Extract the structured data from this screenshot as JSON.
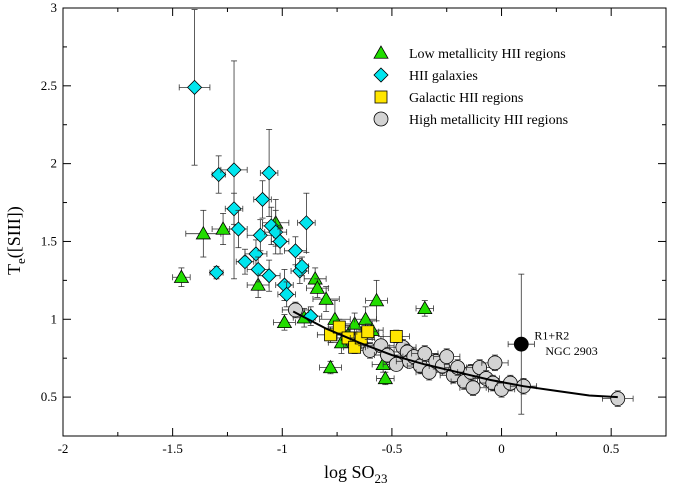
{
  "chart_data": {
    "type": "scatter",
    "xlabel": "log SO",
    "xlabel_sub": "23",
    "ylabel": "T",
    "ylabel_sub": "e",
    "ylabel_suffix": "([SIII])",
    "xlim": [
      -2,
      0.75
    ],
    "ylim": [
      0.25,
      3
    ],
    "x_ticks": [
      -2,
      -1.5,
      -1,
      -0.5,
      0,
      0.5
    ],
    "x_tick_labels": [
      "-2",
      "-1.5",
      "-1",
      "-0.5",
      "0",
      "0.5"
    ],
    "y_ticks": [
      0.5,
      1,
      1.5,
      2,
      2.5,
      3
    ],
    "y_tick_labels": [
      "0.5",
      "1",
      "1.5",
      "2",
      "2.5",
      "3"
    ],
    "grid": false,
    "legend_position": "top-right",
    "series": [
      {
        "name": "Low metallicity HII regions",
        "marker": "triangle",
        "color": "#22dd00",
        "points": [
          {
            "x": -1.46,
            "y": 1.27,
            "xerr": 0.04,
            "yerr": 0.06
          },
          {
            "x": -1.36,
            "y": 1.55,
            "xerr": 0.08,
            "yerr": 0.15
          },
          {
            "x": -1.27,
            "y": 1.58,
            "xerr": 0.05,
            "yerr": 0.1
          },
          {
            "x": -1.11,
            "y": 1.22,
            "xerr": 0.05,
            "yerr": 0.08
          },
          {
            "x": -1.03,
            "y": 1.62,
            "xerr": 0.06,
            "yerr": 0.15
          },
          {
            "x": -0.99,
            "y": 0.98,
            "xerr": 0.05,
            "yerr": 0.05
          },
          {
            "x": -0.9,
            "y": 1.01,
            "xerr": 0.05,
            "yerr": 0.06
          },
          {
            "x": -0.85,
            "y": 1.26,
            "xerr": 0.05,
            "yerr": 0.07
          },
          {
            "x": -0.84,
            "y": 1.2,
            "xerr": 0.05,
            "yerr": 0.06
          },
          {
            "x": -0.8,
            "y": 1.13,
            "xerr": 0.06,
            "yerr": 0.08
          },
          {
            "x": -0.78,
            "y": 0.69,
            "xerr": 0.05,
            "yerr": 0.04
          },
          {
            "x": -0.76,
            "y": 1.0,
            "xerr": 0.07,
            "yerr": 0.12
          },
          {
            "x": -0.73,
            "y": 0.85,
            "xerr": 0.06,
            "yerr": 0.07
          },
          {
            "x": -0.7,
            "y": 0.9,
            "xerr": 0.05,
            "yerr": 0.06
          },
          {
            "x": -0.67,
            "y": 0.97,
            "xerr": 0.05,
            "yerr": 0.07
          },
          {
            "x": -0.64,
            "y": 0.88,
            "xerr": 0.06,
            "yerr": 0.07
          },
          {
            "x": -0.62,
            "y": 1.0,
            "xerr": 0.05,
            "yerr": 0.08
          },
          {
            "x": -0.59,
            "y": 0.93,
            "xerr": 0.05,
            "yerr": 0.06
          },
          {
            "x": -0.57,
            "y": 1.12,
            "xerr": 0.05,
            "yerr": 0.13
          },
          {
            "x": -0.54,
            "y": 0.71,
            "xerr": 0.05,
            "yerr": 0.05
          },
          {
            "x": -0.53,
            "y": 0.62,
            "xerr": 0.04,
            "yerr": 0.04
          },
          {
            "x": -0.35,
            "y": 1.07,
            "xerr": 0.04,
            "yerr": 0.05
          }
        ]
      },
      {
        "name": "HII galaxies",
        "marker": "diamond",
        "color": "#00e5ee",
        "points": [
          {
            "x": -1.4,
            "y": 2.49,
            "xerr": 0.07,
            "yerr": 0.5
          },
          {
            "x": -1.3,
            "y": 1.3,
            "xerr": 0.03,
            "yerr": 0.04
          },
          {
            "x": -1.29,
            "y": 1.93,
            "xerr": 0.03,
            "yerr": 0.12
          },
          {
            "x": -1.22,
            "y": 1.96,
            "xerr": 0.06,
            "yerr": 0.7
          },
          {
            "x": -1.22,
            "y": 1.71,
            "xerr": 0.04,
            "yerr": 0.1
          },
          {
            "x": -1.2,
            "y": 1.58,
            "xerr": 0.04,
            "yerr": 0.12
          },
          {
            "x": -1.17,
            "y": 1.37,
            "xerr": 0.04,
            "yerr": 0.08
          },
          {
            "x": -1.12,
            "y": 1.42,
            "xerr": 0.05,
            "yerr": 0.09
          },
          {
            "x": -1.11,
            "y": 1.32,
            "xerr": 0.05,
            "yerr": 0.08
          },
          {
            "x": -1.1,
            "y": 1.54,
            "xerr": 0.06,
            "yerr": 0.1
          },
          {
            "x": -1.09,
            "y": 1.77,
            "xerr": 0.04,
            "yerr": 0.12
          },
          {
            "x": -1.06,
            "y": 1.94,
            "xerr": 0.04,
            "yerr": 0.28
          },
          {
            "x": -1.06,
            "y": 1.28,
            "xerr": 0.05,
            "yerr": 0.1
          },
          {
            "x": -1.05,
            "y": 1.6,
            "xerr": 0.04,
            "yerr": 0.12
          },
          {
            "x": -1.03,
            "y": 1.56,
            "xerr": 0.05,
            "yerr": 0.14
          },
          {
            "x": -1.01,
            "y": 1.5,
            "xerr": 0.04,
            "yerr": 0.08
          },
          {
            "x": -0.99,
            "y": 1.22,
            "xerr": 0.04,
            "yerr": 0.1
          },
          {
            "x": -0.98,
            "y": 1.16,
            "xerr": 0.04,
            "yerr": 0.08
          },
          {
            "x": -0.94,
            "y": 1.44,
            "xerr": 0.05,
            "yerr": 0.09
          },
          {
            "x": -0.92,
            "y": 1.31,
            "xerr": 0.04,
            "yerr": 0.08
          },
          {
            "x": -0.91,
            "y": 1.34,
            "xerr": 0.03,
            "yerr": 0.06
          },
          {
            "x": -0.89,
            "y": 1.62,
            "xerr": 0.04,
            "yerr": 0.19
          },
          {
            "x": -0.87,
            "y": 1.02,
            "xerr": 0.05,
            "yerr": 0.06
          }
        ]
      },
      {
        "name": "Galactic HII regions",
        "marker": "square",
        "color": "#ffe600",
        "points": [
          {
            "x": -0.78,
            "y": 0.9,
            "xerr": 0.06,
            "yerr": 0.05
          },
          {
            "x": -0.74,
            "y": 0.95,
            "xerr": 0.05,
            "yerr": 0.05
          },
          {
            "x": -0.7,
            "y": 0.88,
            "xerr": 0.05,
            "yerr": 0.05
          },
          {
            "x": -0.67,
            "y": 0.82,
            "xerr": 0.05,
            "yerr": 0.04
          },
          {
            "x": -0.64,
            "y": 0.88,
            "xerr": 0.05,
            "yerr": 0.05
          },
          {
            "x": -0.61,
            "y": 0.92,
            "xerr": 0.05,
            "yerr": 0.05
          },
          {
            "x": -0.48,
            "y": 0.89,
            "xerr": 0.06,
            "yerr": 0.04
          }
        ]
      },
      {
        "name": "High metallicity HII regions",
        "marker": "circle",
        "color": "#d3d3d3",
        "points": [
          {
            "x": -0.94,
            "y": 1.06,
            "xerr": 0.06,
            "yerr": 0.05
          },
          {
            "x": -0.6,
            "y": 0.8,
            "xerr": 0.07,
            "yerr": 0.05
          },
          {
            "x": -0.55,
            "y": 0.83,
            "xerr": 0.06,
            "yerr": 0.06
          },
          {
            "x": -0.52,
            "y": 0.77,
            "xerr": 0.06,
            "yerr": 0.05
          },
          {
            "x": -0.48,
            "y": 0.71,
            "xerr": 0.06,
            "yerr": 0.04
          },
          {
            "x": -0.45,
            "y": 0.82,
            "xerr": 0.06,
            "yerr": 0.05
          },
          {
            "x": -0.43,
            "y": 0.79,
            "xerr": 0.06,
            "yerr": 0.05
          },
          {
            "x": -0.42,
            "y": 0.73,
            "xerr": 0.06,
            "yerr": 0.04
          },
          {
            "x": -0.4,
            "y": 0.76,
            "xerr": 0.05,
            "yerr": 0.05
          },
          {
            "x": -0.37,
            "y": 0.7,
            "xerr": 0.06,
            "yerr": 0.05
          },
          {
            "x": -0.35,
            "y": 0.78,
            "xerr": 0.06,
            "yerr": 0.05
          },
          {
            "x": -0.33,
            "y": 0.66,
            "xerr": 0.06,
            "yerr": 0.05
          },
          {
            "x": -0.3,
            "y": 0.73,
            "xerr": 0.06,
            "yerr": 0.05
          },
          {
            "x": -0.27,
            "y": 0.7,
            "xerr": 0.06,
            "yerr": 0.05
          },
          {
            "x": -0.25,
            "y": 0.76,
            "xerr": 0.06,
            "yerr": 0.05
          },
          {
            "x": -0.22,
            "y": 0.64,
            "xerr": 0.06,
            "yerr": 0.05
          },
          {
            "x": -0.2,
            "y": 0.69,
            "xerr": 0.06,
            "yerr": 0.05
          },
          {
            "x": -0.17,
            "y": 0.6,
            "xerr": 0.06,
            "yerr": 0.05
          },
          {
            "x": -0.14,
            "y": 0.66,
            "xerr": 0.06,
            "yerr": 0.05
          },
          {
            "x": -0.13,
            "y": 0.56,
            "xerr": 0.06,
            "yerr": 0.05
          },
          {
            "x": -0.1,
            "y": 0.69,
            "xerr": 0.06,
            "yerr": 0.05
          },
          {
            "x": -0.07,
            "y": 0.62,
            "xerr": 0.06,
            "yerr": 0.05
          },
          {
            "x": -0.04,
            "y": 0.59,
            "xerr": 0.06,
            "yerr": 0.05
          },
          {
            "x": -0.03,
            "y": 0.72,
            "xerr": 0.06,
            "yerr": 0.05
          },
          {
            "x": 0.0,
            "y": 0.55,
            "xerr": 0.06,
            "yerr": 0.05
          },
          {
            "x": 0.04,
            "y": 0.59,
            "xerr": 0.06,
            "yerr": 0.05
          },
          {
            "x": 0.1,
            "y": 0.57,
            "xerr": 0.06,
            "yerr": 0.05
          },
          {
            "x": 0.53,
            "y": 0.49,
            "xerr": 0.07,
            "yerr": 0.05
          }
        ]
      },
      {
        "name": "NGC 2903 R1+R2",
        "marker": "circle",
        "color": "#000000",
        "show_in_legend": false,
        "points": [
          {
            "x": 0.09,
            "y": 0.84,
            "xerr": 0.06,
            "yerr": 0.45
          }
        ]
      }
    ],
    "fit_curve": {
      "x": [
        -0.95,
        -0.8,
        -0.65,
        -0.5,
        -0.35,
        -0.2,
        -0.05,
        0.1,
        0.25,
        0.4,
        0.53
      ],
      "y": [
        1.05,
        0.94,
        0.85,
        0.77,
        0.71,
        0.66,
        0.61,
        0.57,
        0.54,
        0.51,
        0.5
      ]
    },
    "annotations": [
      {
        "text": "R1+R2",
        "x": 0.15,
        "y": 0.87
      },
      {
        "text": "NGC 2903",
        "x": 0.2,
        "y": 0.77
      }
    ]
  }
}
